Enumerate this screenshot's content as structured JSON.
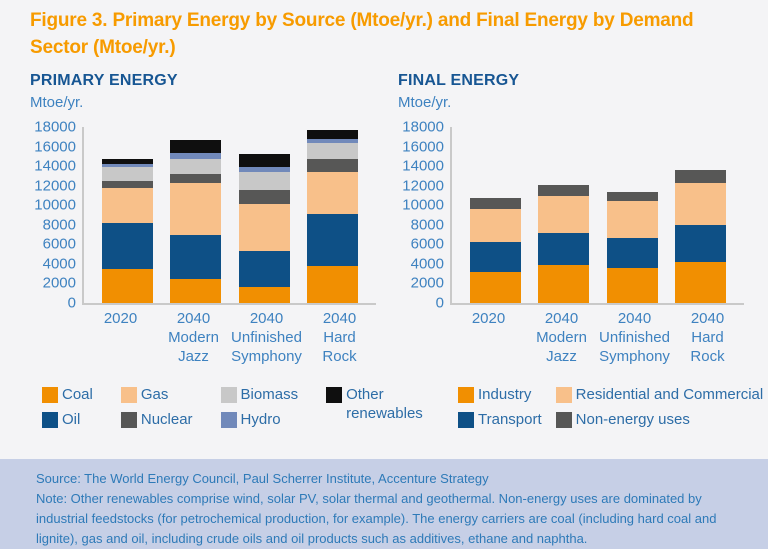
{
  "title": "Figure 3. Primary Energy by Source (Mtoe/yr.) and Final Energy by Demand Sector (Mtoe/yr.)",
  "footer": {
    "source": "Source: The World Energy Council, Paul Scherrer Institute, Accenture Strategy",
    "note": "Note: Other renewables comprise wind, solar PV, solar thermal and geothermal. Non-energy uses are dominated by industrial feedstocks (for petrochemical production, for example). The energy carriers are coal (including hard coal and lignite), gas and oil, including crude oils and oil products such as additives, ethane and naphtha."
  },
  "colors": {
    "title_orange": "#f79b00",
    "header_blue": "#175693",
    "axis_blue": "#3e82c0",
    "legend_text_blue": "#2d6da7",
    "footer_bg": "#c6cfe6",
    "footer_text": "#2e7ab8"
  },
  "chart_data": [
    {
      "type": "bar",
      "stacked": true,
      "title": "PRIMARY ENERGY",
      "ylabel": "Mtoe/yr.",
      "xlabel": "",
      "ylim": [
        0,
        18000
      ],
      "ytick_step": 2000,
      "grid": false,
      "legend_position": "bottom",
      "categories": [
        "2020",
        "2040\nModern\nJazz",
        "2040\nUnfinished\nSymphony",
        "2040\nHard\nRock"
      ],
      "series": [
        {
          "name": "Coal",
          "color": "#f18f01",
          "values": [
            3500,
            2450,
            1650,
            3750
          ]
        },
        {
          "name": "Oil",
          "color": "#0e5086",
          "values": [
            4700,
            4550,
            3700,
            5400
          ]
        },
        {
          "name": "Gas",
          "color": "#f8c08a",
          "values": [
            3550,
            5300,
            4750,
            4200
          ]
        },
        {
          "name": "Nuclear",
          "color": "#575756",
          "values": [
            700,
            850,
            1450,
            1350
          ]
        },
        {
          "name": "Biomass",
          "color": "#c8c8c8",
          "values": [
            1500,
            1550,
            1850,
            1700
          ]
        },
        {
          "name": "Hydro",
          "color": "#7189ba",
          "values": [
            300,
            600,
            500,
            350
          ]
        },
        {
          "name": "Other renewables",
          "color": "#0f0f0f",
          "values": [
            450,
            1350,
            1300,
            950
          ]
        }
      ],
      "totals": [
        14700,
        16650,
        15200,
        17700
      ],
      "legend_columns": [
        [
          "Coal",
          "Oil"
        ],
        [
          "Gas",
          "Nuclear"
        ],
        [
          "Biomass",
          "Hydro"
        ],
        [
          "Other\nrenewables"
        ]
      ]
    },
    {
      "type": "bar",
      "stacked": true,
      "title": "FINAL ENERGY",
      "ylabel": "Mtoe/yr.",
      "xlabel": "",
      "ylim": [
        0,
        18000
      ],
      "ytick_step": 2000,
      "grid": false,
      "legend_position": "bottom",
      "categories": [
        "2020",
        "2040\nModern\nJazz",
        "2040\nUnfinished\nSymphony",
        "2040\nHard\nRock"
      ],
      "series": [
        {
          "name": "Industry",
          "color": "#f18f01",
          "values": [
            3200,
            3900,
            3600,
            4200
          ]
        },
        {
          "name": "Transport",
          "color": "#0e5086",
          "values": [
            3000,
            3250,
            3100,
            3800
          ]
        },
        {
          "name": "Residential and Commercial",
          "color": "#f8c08a",
          "values": [
            3400,
            3800,
            3750,
            4250
          ]
        },
        {
          "name": "Non-energy uses",
          "color": "#575756",
          "values": [
            1100,
            1150,
            950,
            1350
          ]
        }
      ],
      "totals": [
        10700,
        12100,
        11400,
        13600
      ],
      "legend_columns": [
        [
          "Industry",
          "Transport"
        ],
        [
          "Residential and Commercial",
          "Non-energy uses"
        ]
      ]
    }
  ]
}
